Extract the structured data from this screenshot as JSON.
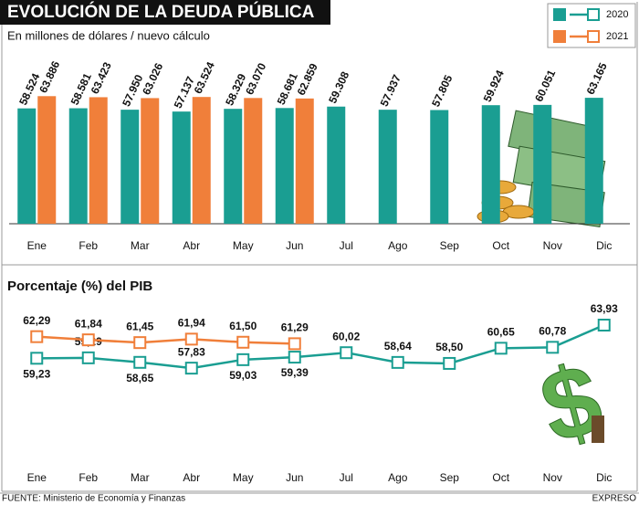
{
  "chart_data": [
    {
      "type": "bar",
      "title": "EVOLUCIÓN DE LA DEUDA PÚBLICA",
      "subtitle": "En millones de dólares / nuevo cálculo",
      "categories": [
        "Ene",
        "Feb",
        "Mar",
        "Abr",
        "May",
        "Jun",
        "Jul",
        "Ago",
        "Sep",
        "Oct",
        "Nov",
        "Dic"
      ],
      "series": [
        {
          "name": "2020",
          "color": "#1a9e92",
          "values": [
            58524,
            58581,
            57950,
            57137,
            58329,
            58681,
            59308,
            57937,
            57805,
            59924,
            60051,
            63165
          ],
          "value_labels": [
            "58.524",
            "58.581",
            "57.950",
            "57.137",
            "58.329",
            "58.681",
            "59.308",
            "57.937",
            "57.805",
            "59.924",
            "60.051",
            "63.165"
          ]
        },
        {
          "name": "2021",
          "color": "#f07f3a",
          "values": [
            63886,
            63423,
            63026,
            63524,
            63070,
            62859,
            null,
            null,
            null,
            null,
            null,
            null
          ],
          "value_labels": [
            "63.886",
            "63.423",
            "63.026",
            "63.524",
            "63.070",
            "62.859",
            null,
            null,
            null,
            null,
            null,
            null
          ]
        }
      ],
      "ylim": [
        8000,
        66000
      ],
      "legend": "top-right"
    },
    {
      "type": "line",
      "title": "Porcentaje (%) del PIB",
      "categories": [
        "Ene",
        "Feb",
        "Mar",
        "Abr",
        "May",
        "Jun",
        "Jul",
        "Ago",
        "Sep",
        "Oct",
        "Nov",
        "Dic"
      ],
      "series": [
        {
          "name": "2020",
          "color": "#1a9e92",
          "values": [
            59.23,
            59.29,
            58.65,
            57.83,
            59.03,
            59.39,
            60.02,
            58.64,
            58.5,
            60.65,
            60.78,
            63.93
          ],
          "value_labels": [
            "59,23",
            "59,29",
            "58,65",
            "57,83",
            "59,03",
            "59,39",
            "60,02",
            "58,64",
            "58,50",
            "60,65",
            "60,78",
            "63,93"
          ]
        },
        {
          "name": "2021",
          "color": "#f07f3a",
          "values": [
            62.29,
            61.84,
            61.45,
            61.94,
            61.5,
            61.29,
            null,
            null,
            null,
            null,
            null,
            null
          ],
          "value_labels": [
            "62,29",
            "61,84",
            "61,45",
            "61,94",
            "61,50",
            "61,29",
            null,
            null,
            null,
            null,
            null,
            null
          ]
        }
      ],
      "ylim": [
        55,
        66
      ]
    }
  ],
  "source": "FUENTE: Ministerio de Economía y Finanzas",
  "publisher": "EXPRESO"
}
